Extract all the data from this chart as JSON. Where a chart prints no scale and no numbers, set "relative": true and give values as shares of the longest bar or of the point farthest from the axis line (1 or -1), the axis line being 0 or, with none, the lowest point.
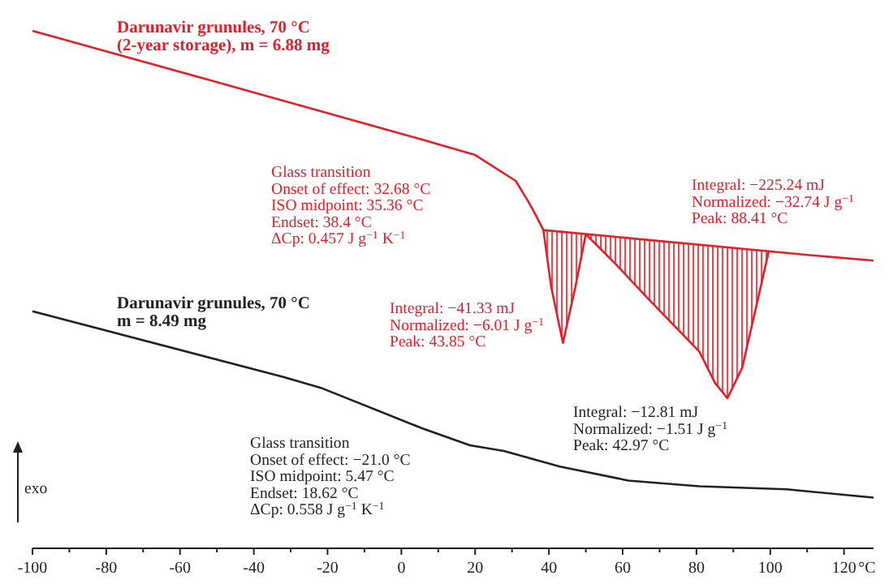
{
  "chart_data": {
    "type": "line",
    "relative": true,
    "xlabel": "°C",
    "xlim": [
      -100,
      128
    ],
    "xticks": [
      -100,
      {
        "value": -90,
        "label": null
      },
      -80,
      {
        "value": -70,
        "label": null
      },
      -60,
      {
        "value": -50,
        "label": null
      },
      -40,
      {
        "value": -30,
        "label": null
      },
      -20,
      {
        "value": -10,
        "label": null
      },
      0,
      {
        "value": 10,
        "label": null
      },
      20,
      {
        "value": 30,
        "label": null
      },
      40,
      {
        "value": 50,
        "label": null
      },
      60,
      {
        "value": 70,
        "label": null
      },
      80,
      {
        "value": 90,
        "label": null
      },
      100,
      {
        "value": 110,
        "label": null
      },
      120
    ],
    "marker": "none",
    "line_style": "solid",
    "series": [
      {
        "name": "Darunavir grunules, 70 °C\n(2-year storage), m = 6.88 mg",
        "color": "#e41e26",
        "x": [
          -100,
          -50,
          2.6,
          20,
          31,
          34,
          36,
          38.5,
          40.6,
          43.8,
          47.2,
          50,
          58,
          66.4,
          74,
          80.8,
          85,
          88.4,
          92.4,
          96.8,
          99.6,
          110,
          128
        ],
        "values": [
          1.0,
          0.901,
          0.796,
          0.76,
          0.71,
          0.675,
          0.65,
          0.615,
          0.506,
          0.397,
          0.506,
          0.607,
          0.55,
          0.486,
          0.43,
          0.38,
          0.32,
          0.29,
          0.349,
          0.486,
          0.574,
          0.567,
          0.556
        ],
        "lower": [
          null,
          null,
          null,
          null,
          null,
          null,
          null,
          0.615,
          0.506,
          0.397,
          0.506,
          0.607,
          0.55,
          0.486,
          0.43,
          0.38,
          0.32,
          0.29,
          0.349,
          0.486,
          0.574,
          null,
          null
        ],
        "upper": [
          null,
          null,
          null,
          null,
          null,
          null,
          null,
          0.615,
          0.614,
          0.611,
          0.609,
          0.607,
          0.602,
          0.596,
          0.591,
          0.586,
          0.583,
          0.581,
          0.578,
          0.576,
          0.574,
          null,
          null
        ]
      },
      {
        "type": "line",
        "color": "#e41e26",
        "x": [
          38.5,
          99.6
        ],
        "values": [
          0.615,
          0.574
        ]
      },
      {
        "name": "Darunavir grunules, 70 °C\nm = 8.49 mg",
        "color": "#231f20",
        "x": [
          -100,
          -32,
          -21.4,
          5.6,
          18.6,
          27.8,
          43,
          61.5,
          80.7,
          104.5,
          128
        ],
        "values": [
          0.458,
          0.331,
          0.309,
          0.232,
          0.199,
          0.188,
          0.158,
          0.131,
          0.12,
          0.114,
          0.098
        ]
      }
    ],
    "annotations": [
      "Glass transition\nOnset of effect: 32.68 °C\nISO midpoint: 35.36 °C\nEndset: 38.4 °C\nΔCp: 0.457 J g$^{−1}$ K$^{−1}$",
      "Integral: −225.24 mJ\nNormalized: −32.74 J g$^{−1}$\nPeak: 88.41 °C",
      "Integral: −41.33 mJ\nNormalized: −6.01 J g$^{−1}$\nPeak: 43.85 °C",
      "Integral: −12.81 mJ\nNormalized: −1.51 J g$^{−1}$\nPeak: 42.97 °C",
      "Glass transition\nOnset of effect: −21.0 °C\nISO midpoint: 5.47 °C\nEndset: 18.62 °C\nΔCp: 0.558 J g$^{−1}$ K$^{−1}$",
      "exo"
    ]
  }
}
